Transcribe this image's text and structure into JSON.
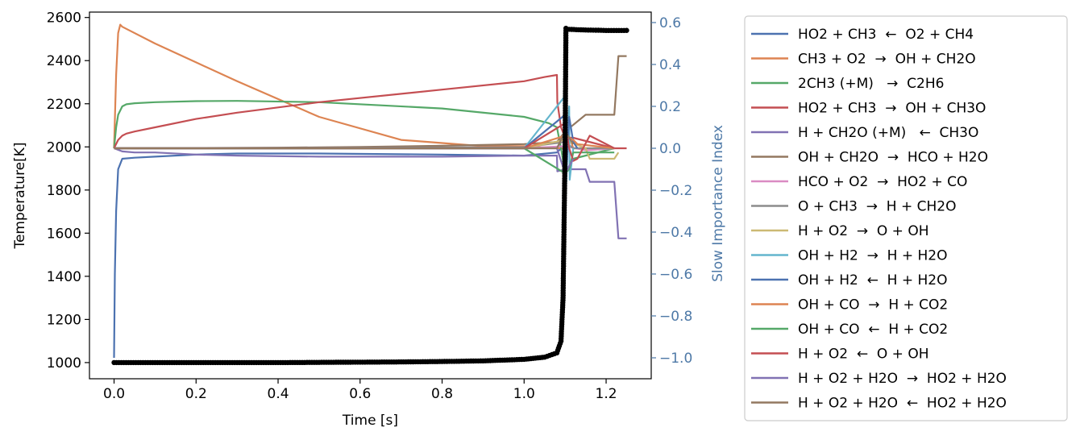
{
  "colors": {
    "right_axis": "#4e79a7",
    "temperature": "#000000"
  },
  "chart_data": {
    "type": "line",
    "xlabel": "Time [s]",
    "ylabel_left": "Temperature[K]",
    "ylabel_right": "Slow Importance Index",
    "xlim": [
      -0.06,
      1.31
    ],
    "ylim_left": [
      925,
      2625
    ],
    "ylim_right": [
      -1.1,
      0.65
    ],
    "x_ticks": [
      0.0,
      0.2,
      0.4,
      0.6,
      0.8,
      1.0,
      1.2
    ],
    "x_tick_labels": [
      "0.0",
      "0.2",
      "0.4",
      "0.6",
      "0.8",
      "1.0",
      "1.2"
    ],
    "y_left_ticks": [
      1000,
      1200,
      1400,
      1600,
      1800,
      2000,
      2200,
      2400,
      2600
    ],
    "y_left_tick_labels": [
      "1000",
      "1200",
      "1400",
      "1600",
      "1800",
      "2000",
      "2200",
      "2400",
      "2600"
    ],
    "y_right_ticks": [
      -1.0,
      -0.8,
      -0.6,
      -0.4,
      -0.2,
      0.0,
      0.2,
      0.4,
      0.6
    ],
    "y_right_tick_labels": [
      "−1.0",
      "−0.8",
      "−0.6",
      "−0.4",
      "−0.2",
      "0.0",
      "0.2",
      "0.4",
      "0.6"
    ],
    "legend_position": "outside-right",
    "temperature_series": {
      "axis": "left",
      "color": "#000000",
      "marker": "circle",
      "x": [
        0.0,
        0.1,
        0.2,
        0.3,
        0.4,
        0.5,
        0.6,
        0.7,
        0.8,
        0.9,
        1.0,
        1.05,
        1.08,
        1.09,
        1.095,
        1.1,
        1.102,
        1.11,
        1.15,
        1.2,
        1.25
      ],
      "y": [
        1000,
        1000,
        1000,
        1000,
        1000,
        1001,
        1002,
        1003,
        1005,
        1008,
        1015,
        1025,
        1045,
        1100,
        1300,
        2000,
        2550,
        2545,
        2542,
        2540,
        2540
      ]
    },
    "series": [
      {
        "name": "HO2 + CH3  ←  O2 + CH4",
        "color": "#4c72b0",
        "x": [
          0.0,
          0.002,
          0.005,
          0.01,
          0.02,
          0.05,
          0.1,
          0.2,
          0.3,
          0.5,
          0.8,
          1.0,
          1.08,
          1.09,
          1.1,
          1.105
        ],
        "y": [
          -1.0,
          -0.6,
          -0.3,
          -0.1,
          -0.05,
          -0.045,
          -0.04,
          -0.03,
          -0.025,
          -0.025,
          -0.03,
          -0.035,
          -0.02,
          0.0,
          0.0,
          -0.01
        ]
      },
      {
        "name": "CH3 + O2  →  OH + CH2O",
        "color": "#dd8452",
        "x": [
          0.0,
          0.005,
          0.01,
          0.015,
          0.02,
          0.03,
          0.1,
          0.2,
          0.3,
          0.5,
          0.7,
          0.9,
          1.0,
          1.08,
          1.1,
          1.11,
          1.12,
          1.22
        ],
        "y": [
          0.0,
          0.35,
          0.55,
          0.59,
          0.58,
          0.57,
          0.5,
          0.41,
          0.32,
          0.15,
          0.04,
          0.01,
          0.01,
          0.0,
          0.0,
          0.06,
          0.0,
          0.0
        ]
      },
      {
        "name": "2CH3 (+M)   →  C2H6",
        "color": "#55a868",
        "x": [
          0.0,
          0.005,
          0.01,
          0.02,
          0.03,
          0.05,
          0.1,
          0.2,
          0.3,
          0.5,
          0.8,
          1.0,
          1.06,
          1.08,
          1.09,
          1.1,
          1.12,
          1.22
        ],
        "y": [
          0.0,
          0.1,
          0.16,
          0.2,
          0.21,
          0.215,
          0.22,
          0.225,
          0.226,
          0.22,
          0.19,
          0.15,
          0.12,
          0.1,
          0.0,
          -0.12,
          -0.05,
          0.0
        ]
      },
      {
        "name": "HO2 + CH3  →  OH + CH3O",
        "color": "#c44e52",
        "x": [
          0.0,
          0.01,
          0.02,
          0.03,
          0.05,
          0.1,
          0.2,
          0.3,
          0.5,
          0.8,
          1.0,
          1.05,
          1.08,
          1.081,
          1.09,
          1.1,
          1.12,
          1.22,
          1.25
        ],
        "y": [
          0.0,
          0.04,
          0.06,
          0.07,
          0.08,
          0.1,
          0.14,
          0.17,
          0.22,
          0.28,
          0.32,
          0.34,
          0.35,
          0.22,
          0.1,
          0.05,
          0.05,
          0.0,
          0.0
        ]
      },
      {
        "name": "H + CH2O (+M)   ←  CH3O",
        "color": "#8172b3",
        "x": [
          0.0,
          0.02,
          0.05,
          0.1,
          0.2,
          0.3,
          0.5,
          0.8,
          1.0,
          1.08,
          1.081,
          1.1,
          1.15,
          1.16,
          1.22,
          1.23,
          1.25
        ],
        "y": [
          0.0,
          -0.015,
          -0.02,
          -0.02,
          -0.03,
          -0.035,
          -0.04,
          -0.04,
          -0.035,
          -0.035,
          -0.11,
          -0.1,
          -0.1,
          -0.16,
          -0.16,
          -0.43,
          -0.43
        ]
      },
      {
        "name": "OH + CH2O  →  HCO + H2O",
        "color": "#937860",
        "x": [
          0.0,
          0.2,
          0.4,
          0.6,
          0.8,
          1.0,
          1.08,
          1.1,
          1.15,
          1.2,
          1.22,
          1.23,
          1.25
        ],
        "y": [
          0.0,
          0.001,
          0.003,
          0.006,
          0.012,
          0.02,
          0.03,
          0.08,
          0.16,
          0.16,
          0.16,
          0.44,
          0.44
        ]
      },
      {
        "name": "HCO + O2  →  HO2 + CO",
        "color": "#da8bc3",
        "x": [
          0.0,
          0.5,
          1.0,
          1.1,
          1.15,
          1.22
        ],
        "y": [
          0.0,
          0.0,
          0.0,
          0.01,
          -0.01,
          0.0
        ]
      },
      {
        "name": "O + CH3  →  H + CH2O",
        "color": "#8c8c8c",
        "x": [
          0.0,
          0.5,
          1.0,
          1.1,
          1.12,
          1.22
        ],
        "y": [
          0.0,
          0.002,
          0.005,
          0.03,
          0.0,
          0.0
        ]
      },
      {
        "name": "H + O2  →  O + OH",
        "color": "#ccb974",
        "x": [
          0.0,
          0.5,
          1.0,
          1.1,
          1.15,
          1.16,
          1.22,
          1.23
        ],
        "y": [
          0.0,
          0.0,
          0.0,
          0.04,
          0.0,
          -0.05,
          -0.05,
          -0.02
        ]
      },
      {
        "name": "OH + H2  →  H + H2O",
        "color": "#64b5cd",
        "x": [
          0.0,
          0.5,
          1.0,
          1.1,
          1.101,
          1.11,
          1.111,
          1.12
        ],
        "y": [
          0.0,
          0.0,
          0.0,
          0.25,
          -0.25,
          0.2,
          -0.15,
          0.0
        ]
      },
      {
        "name": "OH + H2  ←  H + H2O",
        "color": "#4c72b0",
        "x": [
          0.0,
          0.5,
          1.0,
          1.1,
          1.101,
          1.11,
          1.12,
          1.13
        ],
        "y": [
          0.0,
          0.0,
          0.0,
          0.16,
          -0.2,
          0.15,
          0.03,
          0.0
        ]
      },
      {
        "name": "OH + CO  →  H + CO2",
        "color": "#dd8452",
        "x": [
          0.0,
          0.5,
          1.0,
          1.1,
          1.12,
          1.13,
          1.22
        ],
        "y": [
          0.0,
          0.0,
          0.0,
          0.06,
          0.04,
          0.02,
          0.0
        ]
      },
      {
        "name": "OH + CO  ←  H + CO2",
        "color": "#55a868",
        "x": [
          0.0,
          0.5,
          1.0,
          1.1,
          1.11,
          1.12,
          1.22
        ],
        "y": [
          0.0,
          0.0,
          0.0,
          -0.12,
          -0.1,
          -0.02,
          -0.02
        ]
      },
      {
        "name": "H + O2  ←  O + OH",
        "color": "#c44e52",
        "x": [
          0.0,
          0.5,
          1.0,
          1.1,
          1.11,
          1.12,
          1.13,
          1.16,
          1.22
        ],
        "y": [
          0.0,
          0.0,
          0.0,
          0.12,
          0.0,
          -0.06,
          -0.05,
          0.06,
          0.0
        ]
      },
      {
        "name": "H + O2 + H2O  →  HO2 + H2O",
        "color": "#8172b3",
        "x": [
          0.0,
          0.5,
          1.0,
          1.08,
          1.1,
          1.12
        ],
        "y": [
          0.0,
          0.0,
          0.0,
          0.0,
          -0.12,
          -0.05
        ]
      },
      {
        "name": "H + O2 + H2O  ←  HO2 + H2O",
        "color": "#937860",
        "x": [
          0.0,
          0.5,
          1.0,
          1.08,
          1.1,
          1.12
        ],
        "y": [
          0.0,
          0.0,
          0.0,
          0.0,
          0.08,
          0.02
        ]
      }
    ]
  }
}
